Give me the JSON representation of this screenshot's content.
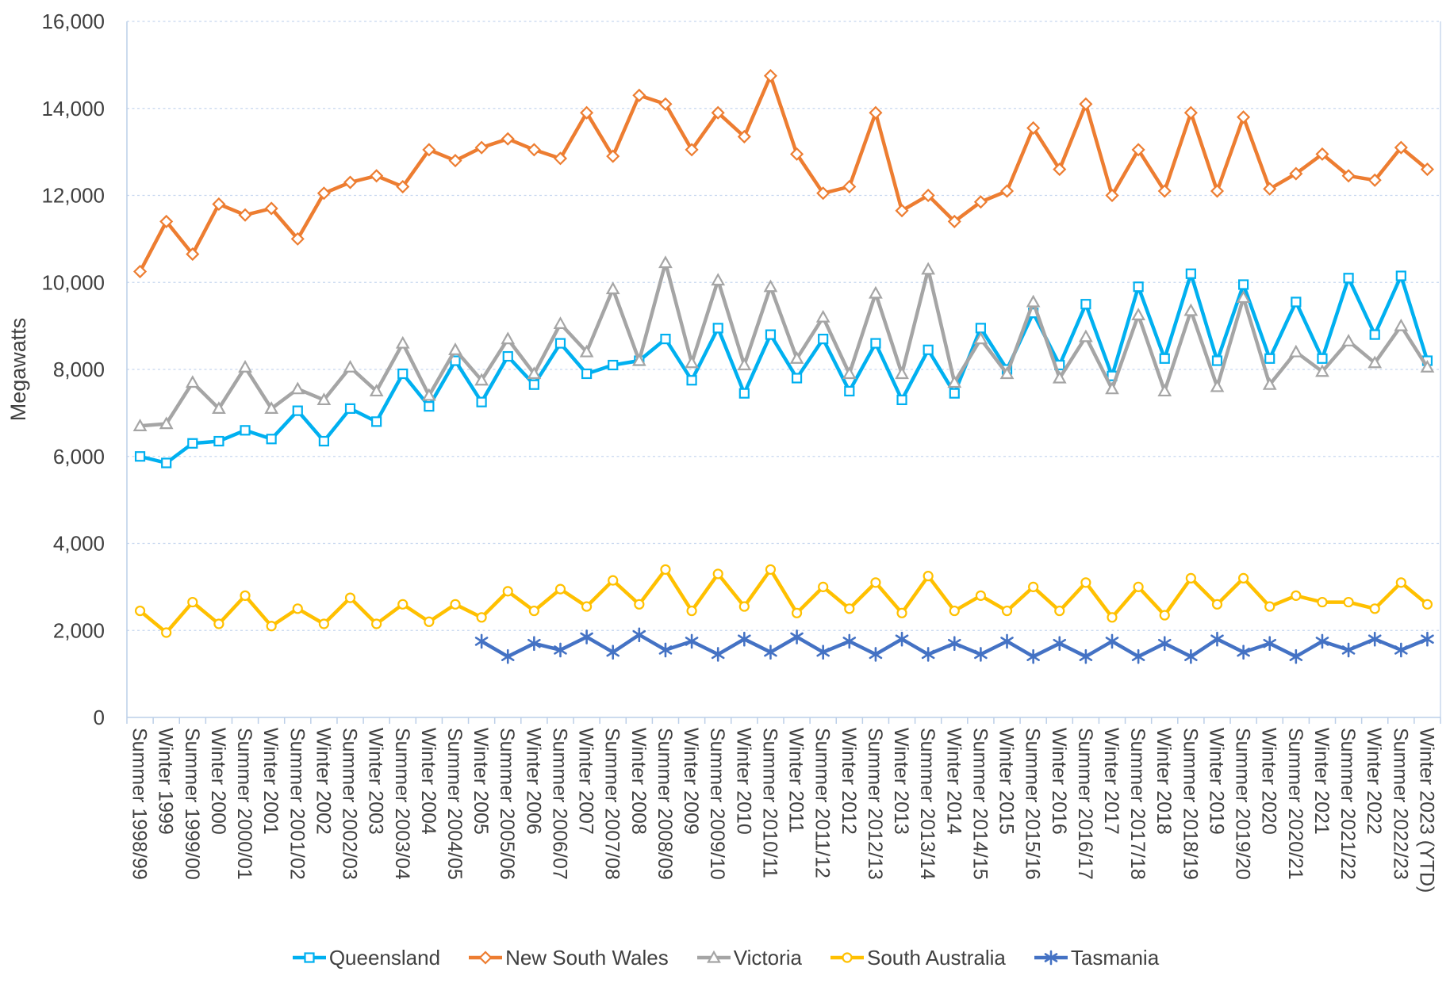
{
  "chart_data": {
    "type": "line",
    "title": "",
    "ylabel": "Megawatts",
    "ylim": [
      0,
      16000
    ],
    "ytick_step": 2000,
    "yticks": [
      "0",
      "2,000",
      "4,000",
      "6,000",
      "8,000",
      "10,000",
      "12,000",
      "14,000",
      "16,000"
    ],
    "grid": "horizontal dashed gridlines",
    "legend_position": "bottom",
    "categories": [
      "Summer 1998/99",
      "Winter 1999",
      "Summer 1999/00",
      "Winter 2000",
      "Summer 2000/01",
      "Winter 2001",
      "Summer 2001/02",
      "Winter 2002",
      "Summer 2002/03",
      "Winter 2003",
      "Summer 2003/04",
      "Winter 2004",
      "Summer 2004/05",
      "Winter 2005",
      "Summer 2005/06",
      "Winter 2006",
      "Summer 2006/07",
      "Winter 2007",
      "Summer 2007/08",
      "Winter 2008",
      "Summer 2008/09",
      "Winter 2009",
      "Summer 2009/10",
      "Winter 2010",
      "Summer 2010/11",
      "Winter 2011",
      "Summer 2011/12",
      "Winter 2012",
      "Summer 2012/13",
      "Winter 2013",
      "Summer 2013/14",
      "Winter 2014",
      "Summer 2014/15",
      "Winter 2015",
      "Summer 2015/16",
      "Winter 2016",
      "Summer 2016/17",
      "Winter 2017",
      "Summer 2017/18",
      "Winter 2018",
      "Summer 2018/19",
      "Winter 2019",
      "Summer 2019/20",
      "Winter 2020",
      "Summer 2020/21",
      "Winter 2021",
      "Summer 2021/22",
      "Winter 2022",
      "Summer 2022/23",
      "Winter 2023 (YTD)"
    ],
    "series": [
      {
        "name": "Queensland",
        "color": "#00B0F0",
        "marker": "square",
        "values": [
          6000,
          5850,
          6300,
          6350,
          6600,
          6400,
          7050,
          6350,
          7100,
          6800,
          7900,
          7150,
          8200,
          7250,
          8300,
          7650,
          8600,
          7900,
          8100,
          8200,
          8700,
          7750,
          8950,
          7450,
          8800,
          7800,
          8700,
          7500,
          8600,
          7300,
          8450,
          7450,
          8950,
          8000,
          9300,
          8100,
          9500,
          7850,
          9900,
          8250,
          10200,
          8200,
          9950,
          8250,
          9550,
          8250,
          10100,
          8800,
          10150,
          8200
        ]
      },
      {
        "name": "New South Wales",
        "color": "#ED7D31",
        "marker": "diamond",
        "values": [
          10250,
          11400,
          10650,
          11800,
          11550,
          11700,
          11000,
          12050,
          12300,
          12450,
          12200,
          13050,
          12800,
          13100,
          13300,
          13050,
          12850,
          13900,
          12900,
          14300,
          14100,
          13050,
          13900,
          13350,
          14750,
          12950,
          12050,
          12200,
          13900,
          11650,
          12000,
          11400,
          11850,
          12100,
          13550,
          12600,
          14100,
          12000,
          13050,
          12100,
          13900,
          12100,
          13800,
          12150,
          12500,
          12950,
          12450,
          12350,
          13100,
          12600
        ]
      },
      {
        "name": "Victoria",
        "color": "#A5A5A5",
        "marker": "triangle",
        "values": [
          6700,
          6750,
          7700,
          7100,
          8050,
          7100,
          7550,
          7300,
          8050,
          7500,
          8600,
          7400,
          8450,
          7750,
          8700,
          7900,
          9050,
          8400,
          9850,
          8200,
          10450,
          8150,
          10050,
          8100,
          9900,
          8250,
          9200,
          7900,
          9750,
          7900,
          10300,
          7700,
          8700,
          7900,
          9550,
          7800,
          8750,
          7550,
          9250,
          7500,
          9350,
          7600,
          9650,
          7650,
          8400,
          7950,
          8650,
          8150,
          9000,
          8050
        ]
      },
      {
        "name": "South Australia",
        "color": "#FFC000",
        "marker": "circle",
        "values": [
          2450,
          1950,
          2650,
          2150,
          2800,
          2100,
          2500,
          2150,
          2750,
          2150,
          2600,
          2200,
          2600,
          2300,
          2900,
          2450,
          2950,
          2550,
          3150,
          2600,
          3400,
          2450,
          3300,
          2550,
          3400,
          2400,
          3000,
          2500,
          3100,
          2400,
          3250,
          2450,
          2800,
          2450,
          3000,
          2450,
          3100,
          2300,
          3000,
          2350,
          3200,
          2600,
          3200,
          2550,
          2800,
          2650,
          2650,
          2500,
          3100,
          2600
        ]
      },
      {
        "name": "Tasmania",
        "color": "#4472C4",
        "marker": "asterisk",
        "values": [
          null,
          null,
          null,
          null,
          null,
          null,
          null,
          null,
          null,
          null,
          null,
          null,
          null,
          1750,
          1400,
          1700,
          1550,
          1850,
          1500,
          1900,
          1550,
          1750,
          1450,
          1800,
          1500,
          1850,
          1500,
          1750,
          1450,
          1800,
          1450,
          1700,
          1450,
          1750,
          1400,
          1700,
          1400,
          1750,
          1400,
          1700,
          1400,
          1800,
          1500,
          1700,
          1400,
          1750,
          1550,
          1800,
          1550,
          1800
        ]
      }
    ],
    "colors": {
      "gridline": "#C7D7EF",
      "axis": "#BCCFE8",
      "tick_label": "#404040"
    }
  }
}
